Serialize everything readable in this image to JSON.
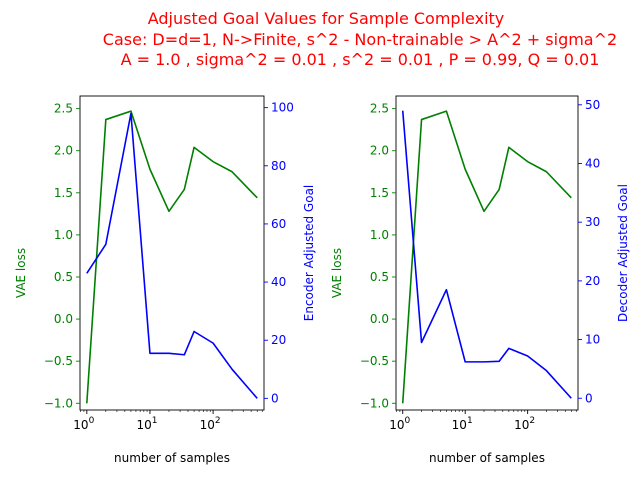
{
  "title_lines": [
    "Adjusted Goal Values for Sample Complexity",
    "Case: D=d=1, N->Finite, s^2 - Non-trainable > A^2 + sigma^2",
    "A = 1.0 , sigma^2 = 0.01 , s^2 = 0.01 , P = 0.99, Q = 0.01"
  ],
  "colors": {
    "title": "#ff0000",
    "vae_loss": "#008000",
    "adjusted_goal": "#0000ff",
    "axis": "#000000"
  },
  "chart_data": [
    {
      "type": "line",
      "x_scale": "log",
      "xlabel": "number of samples",
      "xlim": [
        0.78,
        640
      ],
      "x_ticks": [
        1,
        10,
        100
      ],
      "x_tick_labels": [
        "10^0",
        "10^1",
        "10^2"
      ],
      "left_axis": {
        "label": "VAE loss",
        "ylim": [
          -1.08,
          2.65
        ],
        "ticks": [
          -1.0,
          -0.5,
          0.0,
          0.5,
          1.0,
          1.5,
          2.0,
          2.5
        ],
        "tick_labels": [
          "−1.0",
          "−0.5",
          "0.0",
          "0.5",
          "1.0",
          "1.5",
          "2.0",
          "2.5"
        ],
        "series": {
          "color": "#008000",
          "x": [
            1,
            2,
            5,
            10,
            20,
            35,
            50,
            100,
            200,
            500
          ],
          "y": [
            -1.0,
            2.37,
            2.47,
            1.78,
            1.28,
            1.54,
            2.04,
            1.87,
            1.75,
            1.44
          ]
        }
      },
      "right_axis": {
        "label": "Encoder Adjusted Goal",
        "ylim": [
          -4.0,
          104.0
        ],
        "ticks": [
          0,
          20,
          40,
          60,
          80,
          100
        ],
        "tick_labels": [
          "0",
          "20",
          "40",
          "60",
          "80",
          "100"
        ],
        "series": {
          "color": "#0000ff",
          "x": [
            1,
            2,
            5,
            10,
            20,
            35,
            50,
            100,
            200,
            500
          ],
          "y": [
            43,
            53,
            98,
            15.5,
            15.5,
            15,
            23,
            19,
            10,
            0
          ]
        }
      }
    },
    {
      "type": "line",
      "x_scale": "log",
      "xlabel": "number of samples",
      "xlim": [
        0.78,
        640
      ],
      "x_ticks": [
        1,
        10,
        100
      ],
      "x_tick_labels": [
        "10^0",
        "10^1",
        "10^2"
      ],
      "left_axis": {
        "label": "VAE loss",
        "ylim": [
          -1.08,
          2.65
        ],
        "ticks": [
          -1.0,
          -0.5,
          0.0,
          0.5,
          1.0,
          1.5,
          2.0,
          2.5
        ],
        "tick_labels": [
          "−1.0",
          "−0.5",
          "0.0",
          "0.5",
          "1.0",
          "1.5",
          "2.0",
          "2.5"
        ],
        "series": {
          "color": "#008000",
          "x": [
            1,
            2,
            5,
            10,
            20,
            35,
            50,
            100,
            200,
            500
          ],
          "y": [
            -1.0,
            2.37,
            2.47,
            1.78,
            1.28,
            1.54,
            2.04,
            1.87,
            1.75,
            1.44
          ]
        }
      },
      "right_axis": {
        "label": "Decoder Adjusted Goal",
        "ylim": [
          -2.0,
          51.5
        ],
        "ticks": [
          0,
          10,
          20,
          30,
          40,
          50
        ],
        "tick_labels": [
          "0",
          "10",
          "20",
          "30",
          "40",
          "50"
        ],
        "series": {
          "color": "#0000ff",
          "x": [
            1,
            2,
            5,
            10,
            20,
            35,
            50,
            100,
            200,
            500
          ],
          "y": [
            49,
            9.5,
            18.5,
            6.2,
            6.2,
            6.3,
            8.5,
            7.2,
            4.7,
            0
          ]
        }
      }
    }
  ]
}
